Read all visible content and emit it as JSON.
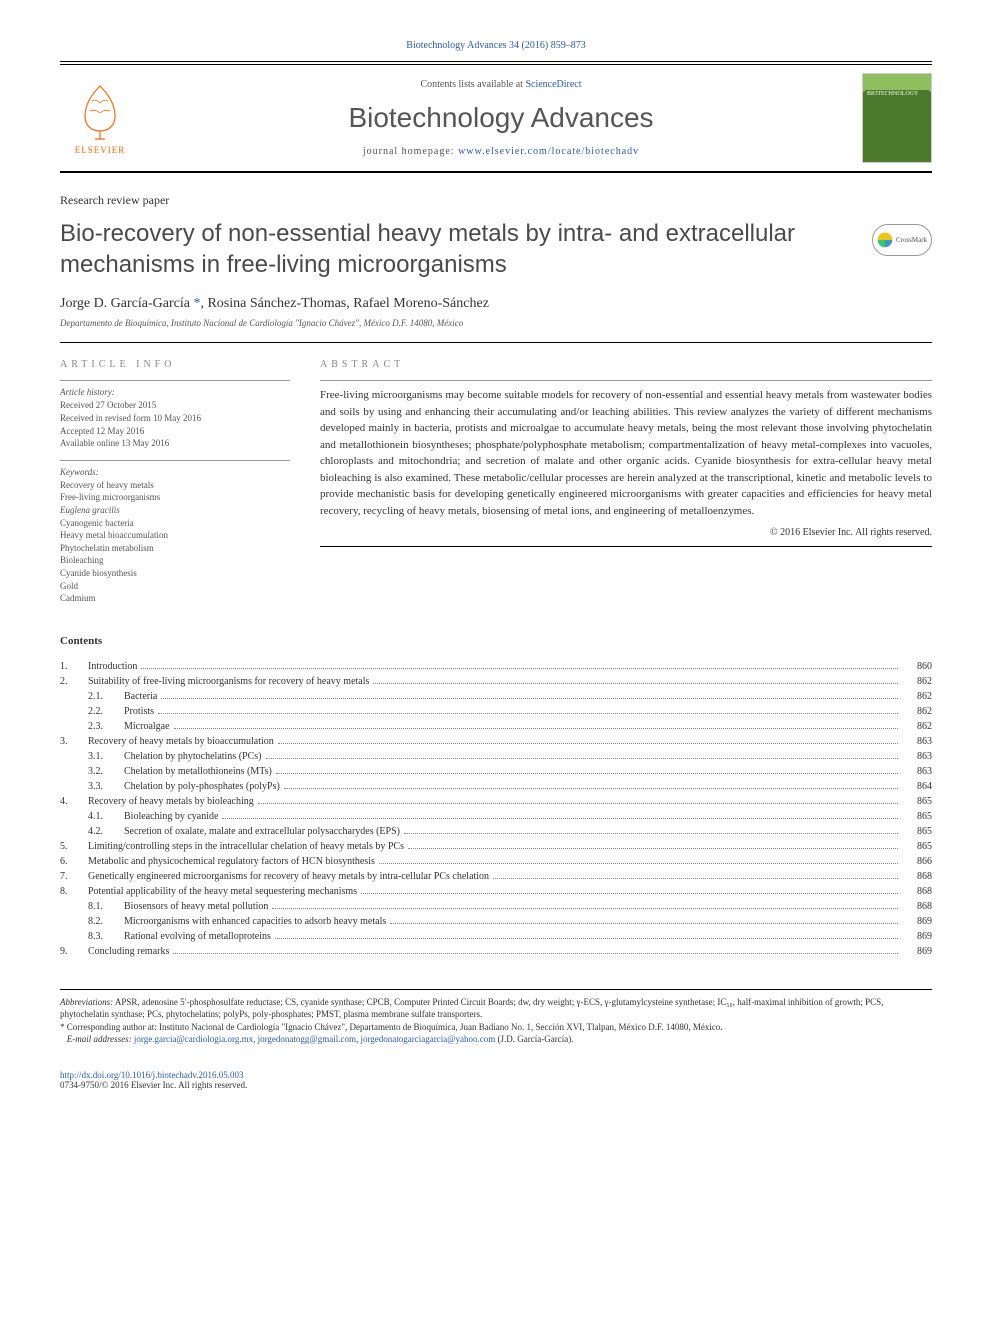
{
  "header": {
    "citation": "Biotechnology Advances 34 (2016) 859–873",
    "contents_available": "Contents lists available at",
    "sciencedirect": "ScienceDirect",
    "journal_name": "Biotechnology Advances",
    "homepage_prefix": "journal homepage:",
    "homepage_url": "www.elsevier.com/locate/biotechadv",
    "elsevier_label": "ELSEVIER",
    "cover_label": "BIOTECHNOLOGY"
  },
  "paper": {
    "type": "Research review paper",
    "title": "Bio-recovery of non-essential heavy metals by intra- and extracellular mechanisms in free-living microorganisms",
    "crossmark": "CrossMark"
  },
  "authors": {
    "line": "Jorge D. García-García *, Rosina Sánchez-Thomas, Rafael Moreno-Sánchez",
    "author1": "Jorge D. García-García",
    "asterisk": "*",
    "sep1": ", ",
    "author2": "Rosina Sánchez-Thomas",
    "sep2": ", ",
    "author3": "Rafael Moreno-Sánchez",
    "affiliation": "Departamento de Bioquímica, Instituto Nacional de Cardiología \"Ignacio Chávez\", México D.F. 14080, México"
  },
  "article_info": {
    "section_label": "ARTICLE INFO",
    "history_label": "Article history:",
    "history": [
      "Received 27 October 2015",
      "Received in revised form 10 May 2016",
      "Accepted 12 May 2016",
      "Available online 13 May 2016"
    ],
    "keywords_label": "Keywords:",
    "keywords": [
      {
        "text": "Recovery of heavy metals",
        "italic": false
      },
      {
        "text": "Free-living microorganisms",
        "italic": false
      },
      {
        "text": "Euglena gracilis",
        "italic": true
      },
      {
        "text": "Cyanogenic bacteria",
        "italic": false
      },
      {
        "text": "Heavy metal bioaccumulation",
        "italic": false
      },
      {
        "text": "Phytochelatin metabolism",
        "italic": false
      },
      {
        "text": "Bioleaching",
        "italic": false
      },
      {
        "text": "Cyanide biosynthesis",
        "italic": false
      },
      {
        "text": "Gold",
        "italic": false
      },
      {
        "text": "Cadmium",
        "italic": false
      }
    ]
  },
  "abstract": {
    "section_label": "ABSTRACT",
    "text": "Free-living microorganisms may become suitable models for recovery of non-essential and essential heavy metals from wastewater bodies and soils by using and enhancing their accumulating and/or leaching abilities. This review analyzes the variety of different mechanisms developed mainly in bacteria, protists and microalgae to accumulate heavy metals, being the most relevant those involving phytochelatin and metallothionein biosyntheses; phosphate/polyphosphate metabolism; compartmentalization of heavy metal-complexes into vacuoles, chloroplasts and mitochondria; and secretion of malate and other organic acids. Cyanide biosynthesis for extra-cellular heavy metal bioleaching is also examined. These metabolic/cellular processes are herein analyzed at the transcriptional, kinetic and metabolic levels to provide mechanistic basis for developing genetically engineered microorganisms with greater capacities and efficiencies for heavy metal recovery, recycling of heavy metals, biosensing of metal ions, and engineering of metalloenzymes.",
    "copyright": "© 2016 Elsevier Inc. All rights reserved."
  },
  "contents": {
    "heading": "Contents",
    "items": [
      {
        "num": "1.",
        "title": "Introduction",
        "page": "860",
        "sub": false
      },
      {
        "num": "2.",
        "title": "Suitability of free-living microorganisms for recovery of heavy metals",
        "page": "862",
        "sub": false
      },
      {
        "num": "2.1.",
        "title": "Bacteria",
        "page": "862",
        "sub": true
      },
      {
        "num": "2.2.",
        "title": "Protists",
        "page": "862",
        "sub": true
      },
      {
        "num": "2.3.",
        "title": "Microalgae",
        "page": "862",
        "sub": true
      },
      {
        "num": "3.",
        "title": "Recovery of heavy metals by bioaccumulation",
        "page": "863",
        "sub": false
      },
      {
        "num": "3.1.",
        "title": "Chelation by phytochelatins (PCs)",
        "page": "863",
        "sub": true
      },
      {
        "num": "3.2.",
        "title": "Chelation by metallothioneins (MTs)",
        "page": "863",
        "sub": true
      },
      {
        "num": "3.3.",
        "title": "Chelation by poly-phosphates (polyPs)",
        "page": "864",
        "sub": true
      },
      {
        "num": "4.",
        "title": "Recovery of heavy metals by bioleaching",
        "page": "865",
        "sub": false
      },
      {
        "num": "4.1.",
        "title": "Bioleaching by cyanide",
        "page": "865",
        "sub": true
      },
      {
        "num": "4.2.",
        "title": "Secretion of oxalate, malate and extracellular polysaccharydes (EPS)",
        "page": "865",
        "sub": true
      },
      {
        "num": "5.",
        "title": "Limiting/controlling steps in the intracellular chelation of heavy metals by PCs",
        "page": "865",
        "sub": false
      },
      {
        "num": "6.",
        "title": "Metabolic and physicochemical regulatory factors of HCN biosynthesis",
        "page": "866",
        "sub": false
      },
      {
        "num": "7.",
        "title": "Genetically engineered microorganisms for recovery of heavy metals by intra-cellular PCs chelation",
        "page": "868",
        "sub": false
      },
      {
        "num": "8.",
        "title": "Potential applicability of the heavy metal sequestering mechanisms",
        "page": "868",
        "sub": false
      },
      {
        "num": "8.1.",
        "title": "Biosensors of heavy metal pollution",
        "page": "868",
        "sub": true
      },
      {
        "num": "8.2.",
        "title": "Microorganisms with enhanced capacities to adsorb heavy metals",
        "page": "869",
        "sub": true
      },
      {
        "num": "8.3.",
        "title": "Rational evolving of metalloproteins",
        "page": "869",
        "sub": true
      },
      {
        "num": "9.",
        "title": "Concluding remarks",
        "page": "869",
        "sub": false
      }
    ]
  },
  "footnotes": {
    "abbrev_label": "Abbreviations:",
    "abbrev_text": " APSR, adenosine 5′-phosphosulfate reductase; CS, cyanide synthase; CPCB, Computer Printed Circuit Boards; dw, dry weight; γ-ECS, γ-glutamylcysteine synthetase; IC₅₀, half-maximal inhibition of growth; PCS, phytochelatin synthase; PCs, phytochelatins; polyPs, poly-phosphates; PMST, plasma membrane sulfate transporters.",
    "corr_marker": "*",
    "corr_text": " Corresponding author at: Instituto Nacional de Cardiología \"Ignacio Chávez\", Departamento de Bioquímica, Juan Badiano No. 1, Sección XVI, Tlalpan, México D.F. 14080, México.",
    "email_label": "E-mail addresses:",
    "email1": "jorge.garcia@cardiologia.org.mx",
    "email_sep1": ", ",
    "email2": "jorgedonatogg@gmail.com",
    "email_sep2": ", ",
    "email3": "jorgedonatogarciagarcia@yahoo.com",
    "email_tail": " (J.D. García-García)."
  },
  "footer": {
    "doi": "http://dx.doi.org/10.1016/j.biotechadv.2016.05.003",
    "issn_line": "0734-9750/© 2016 Elsevier Inc. All rights reserved."
  },
  "colors": {
    "link": "#2a5caa",
    "elsevier_orange": "#ff6600",
    "text": "#333333",
    "muted": "#555555",
    "cover_green": "#4a7a2a"
  },
  "typography": {
    "body_pt": 12,
    "title_pt": 24,
    "journal_pt": 28,
    "small_pt": 9
  }
}
